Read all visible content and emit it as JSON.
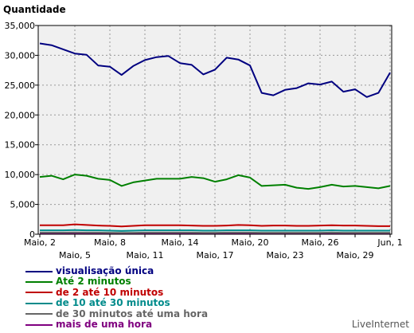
{
  "chart_data": {
    "type": "line",
    "ylabel": "Quantidade",
    "ylim": [
      0,
      35000
    ],
    "yticks": [
      0,
      5000,
      10000,
      15000,
      20000,
      25000,
      30000,
      35000
    ],
    "ytick_labels": [
      "0",
      "5,000",
      "10,000",
      "15,000",
      "20,000",
      "25,000",
      "30,000",
      "35,000"
    ],
    "x": [
      "Maio, 2",
      "Maio, 3",
      "Maio, 4",
      "Maio, 5",
      "Maio, 6",
      "Maio, 7",
      "Maio, 8",
      "Maio, 9",
      "Maio, 10",
      "Maio, 11",
      "Maio, 12",
      "Maio, 13",
      "Maio, 14",
      "Maio, 15",
      "Maio, 16",
      "Maio, 17",
      "Maio, 18",
      "Maio, 19",
      "Maio, 20",
      "Maio, 21",
      "Maio, 22",
      "Maio, 23",
      "Maio, 24",
      "Maio, 25",
      "Maio, 26",
      "Maio, 27",
      "Maio, 28",
      "Maio, 29",
      "Maio, 30",
      "Maio, 31",
      "Jun, 1"
    ],
    "xticks_upper": [
      {
        "index": 0,
        "label": "Maio, 2"
      },
      {
        "index": 6,
        "label": "Maio, 8"
      },
      {
        "index": 12,
        "label": "Maio, 14"
      },
      {
        "index": 18,
        "label": "Maio, 20"
      },
      {
        "index": 24,
        "label": "Maio, 26"
      },
      {
        "index": 30,
        "label": "Jun, 1"
      }
    ],
    "xticks_lower": [
      {
        "index": 3,
        "label": "Maio, 5"
      },
      {
        "index": 9,
        "label": "Maio, 11"
      },
      {
        "index": 15,
        "label": "Maio, 17"
      },
      {
        "index": 21,
        "label": "Maio, 23"
      },
      {
        "index": 27,
        "label": "Maio, 29"
      }
    ],
    "grid": true,
    "series": [
      {
        "name": "visualisação única",
        "color": "#000080",
        "values": [
          32000,
          31700,
          31000,
          30300,
          30100,
          28300,
          28100,
          26700,
          28200,
          29200,
          29700,
          29900,
          28700,
          28400,
          26800,
          27600,
          29600,
          29300,
          28300,
          23700,
          23300,
          24200,
          24500,
          25300,
          25100,
          25600,
          23900,
          24300,
          23000,
          23700,
          27100
        ]
      },
      {
        "name": "Até 2 minutos",
        "color": "#008000",
        "values": [
          9600,
          9800,
          9200,
          10000,
          9800,
          9300,
          9100,
          8100,
          8700,
          9000,
          9300,
          9300,
          9300,
          9600,
          9400,
          8800,
          9200,
          9900,
          9500,
          8100,
          8200,
          8300,
          7800,
          7600,
          7900,
          8300,
          8000,
          8100,
          7900,
          7700,
          8100
        ]
      },
      {
        "name": "de 2 até 10 minutos",
        "color": "#c00000",
        "values": [
          1500,
          1500,
          1500,
          1650,
          1550,
          1450,
          1400,
          1300,
          1400,
          1500,
          1500,
          1500,
          1500,
          1450,
          1400,
          1400,
          1450,
          1550,
          1500,
          1400,
          1450,
          1450,
          1400,
          1400,
          1450,
          1500,
          1450,
          1450,
          1400,
          1350,
          1350
        ]
      },
      {
        "name": "de 10 até 30 minutos",
        "color": "#008b8b",
        "values": [
          650,
          650,
          650,
          700,
          650,
          650,
          600,
          550,
          600,
          650,
          650,
          650,
          650,
          650,
          600,
          600,
          650,
          650,
          650,
          600,
          600,
          600,
          600,
          600,
          600,
          650,
          600,
          600,
          600,
          600,
          600
        ]
      },
      {
        "name": "de 30 minutos até uma hora",
        "color": "#666666",
        "values": [
          280,
          280,
          280,
          300,
          280,
          280,
          260,
          240,
          260,
          280,
          280,
          280,
          280,
          280,
          260,
          260,
          280,
          280,
          280,
          260,
          260,
          260,
          260,
          260,
          260,
          280,
          260,
          260,
          260,
          260,
          260
        ]
      },
      {
        "name": "mais de uma hora",
        "color": "#800080",
        "values": [
          120,
          120,
          120,
          130,
          120,
          120,
          110,
          100,
          110,
          120,
          120,
          120,
          120,
          120,
          110,
          110,
          120,
          120,
          120,
          110,
          110,
          110,
          110,
          110,
          110,
          120,
          110,
          110,
          110,
          110,
          110
        ]
      }
    ]
  },
  "brand": "LiveInternet"
}
